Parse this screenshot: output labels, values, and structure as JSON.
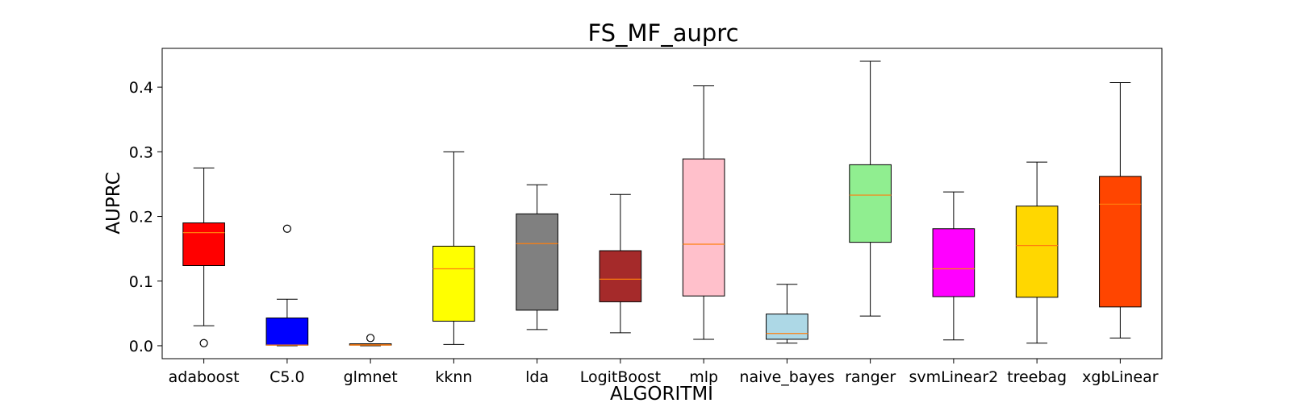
{
  "chart_data": {
    "type": "boxplot",
    "title": "FS_MF_auprc",
    "xlabel": "ALGORITMI",
    "ylabel": "AUPRC",
    "ylim": [
      -0.02,
      0.46
    ],
    "yticks": [
      "0.0",
      "0.1",
      "0.2",
      "0.3",
      "0.4"
    ],
    "grid": false,
    "median_color": "#ff7f0e",
    "boxes": [
      {
        "name": "adaboost",
        "color": "#ff0000",
        "whisker_low": 0.031,
        "q1": 0.124,
        "median": 0.175,
        "q3": 0.19,
        "whisker_high": 0.275,
        "outliers": [
          0.004
        ]
      },
      {
        "name": "C5.0",
        "color": "#0000ff",
        "whisker_low": 0.0,
        "q1": 0.001,
        "median": 0.001,
        "q3": 0.043,
        "whisker_high": 0.072,
        "outliers": [
          0.181
        ]
      },
      {
        "name": "glmnet",
        "color": "#d2691e",
        "whisker_low": 0.0,
        "q1": 0.001,
        "median": 0.001,
        "q3": 0.003,
        "whisker_high": 0.003,
        "outliers": [
          0.012
        ]
      },
      {
        "name": "kknn",
        "color": "#ffff00",
        "whisker_low": 0.002,
        "q1": 0.038,
        "median": 0.119,
        "q3": 0.154,
        "whisker_high": 0.3,
        "outliers": []
      },
      {
        "name": "lda",
        "color": "#808080",
        "whisker_low": 0.025,
        "q1": 0.055,
        "median": 0.158,
        "q3": 0.204,
        "whisker_high": 0.249,
        "outliers": []
      },
      {
        "name": "LogitBoost",
        "color": "#a52a2a",
        "whisker_low": 0.02,
        "q1": 0.068,
        "median": 0.103,
        "q3": 0.147,
        "whisker_high": 0.234,
        "outliers": []
      },
      {
        "name": "mlp",
        "color": "#ffc0cb",
        "whisker_low": 0.01,
        "q1": 0.077,
        "median": 0.157,
        "q3": 0.289,
        "whisker_high": 0.402,
        "outliers": []
      },
      {
        "name": "naive_bayes",
        "color": "#add8e6",
        "whisker_low": 0.004,
        "q1": 0.01,
        "median": 0.019,
        "q3": 0.049,
        "whisker_high": 0.095,
        "outliers": []
      },
      {
        "name": "ranger",
        "color": "#90ee90",
        "whisker_low": 0.046,
        "q1": 0.16,
        "median": 0.233,
        "q3": 0.28,
        "whisker_high": 0.44,
        "outliers": []
      },
      {
        "name": "svmLinear2",
        "color": "#ff00ff",
        "whisker_low": 0.009,
        "q1": 0.076,
        "median": 0.119,
        "q3": 0.181,
        "whisker_high": 0.238,
        "outliers": []
      },
      {
        "name": "treebag",
        "color": "#ffd700",
        "whisker_low": 0.004,
        "q1": 0.075,
        "median": 0.155,
        "q3": 0.216,
        "whisker_high": 0.284,
        "outliers": []
      },
      {
        "name": "xgbLinear",
        "color": "#ff4500",
        "whisker_low": 0.012,
        "q1": 0.06,
        "median": 0.219,
        "q3": 0.262,
        "whisker_high": 0.407,
        "outliers": []
      }
    ]
  }
}
